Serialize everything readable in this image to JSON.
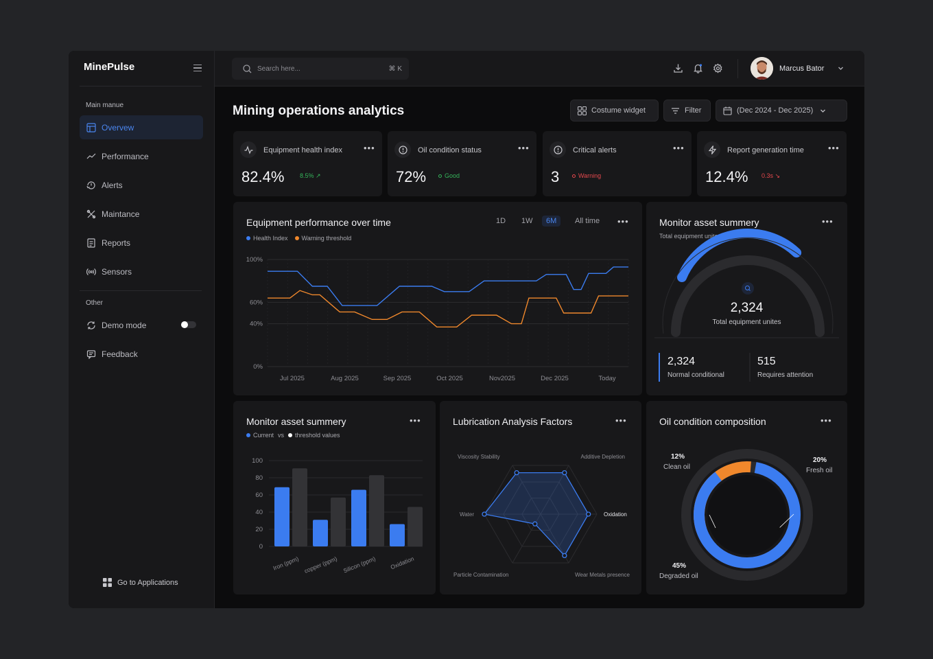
{
  "app": {
    "brand": "MinePulse"
  },
  "sidebar": {
    "section_main": "Main manue",
    "section_other": "Other",
    "items": [
      {
        "label": "Overvew",
        "icon": "layout-icon"
      },
      {
        "label": "Performance",
        "icon": "trend-icon"
      },
      {
        "label": "Alerts",
        "icon": "alert-icon"
      },
      {
        "label": "Maintance",
        "icon": "tools-icon"
      },
      {
        "label": "Reports",
        "icon": "report-icon"
      },
      {
        "label": "Sensors",
        "icon": "sensor-icon"
      }
    ],
    "other_items": [
      {
        "label": "Demo mode",
        "icon": "refresh-icon",
        "toggle": "off"
      },
      {
        "label": "Feedback",
        "icon": "chat-icon"
      }
    ],
    "goto": "Go to Applications"
  },
  "topbar": {
    "search_placeholder": "Search here...",
    "shortcut": "⌘ K",
    "user_name": "Marcus Bator"
  },
  "page": {
    "title": "Mining operations analytics",
    "custom_widget": "Costume widget",
    "filter": "Filter",
    "date_range": "(Dec 2024 - Dec 2025)"
  },
  "kpis": [
    {
      "label": "Equipment health index",
      "value": "82.4%",
      "badge": "8.5% ↗",
      "badge_color": "#35b35a"
    },
    {
      "label": "Oil condition status",
      "value": "72%",
      "badge": "Good",
      "badge_color": "#35b35a"
    },
    {
      "label": "Critical alerts",
      "value": "3",
      "badge": "Warning",
      "badge_color": "#e5484d"
    },
    {
      "label": "Report generation time",
      "value": "12.4%",
      "badge": "0.3s ↘",
      "badge_color": "#e5484d"
    }
  ],
  "performance": {
    "title": "Equipment performance over time",
    "ranges": [
      "1D",
      "1W",
      "6M",
      "All time"
    ],
    "selected_range": "6M",
    "legend": [
      "Health Index",
      "Warning threshold"
    ]
  },
  "asset_summary": {
    "title": "Monitor asset summery",
    "subtitle": "Total equipment unites",
    "gauge_value": "2,324",
    "gauge_label": "Total equipment unites",
    "gauge_fraction": 0.82,
    "stat1_value": "2,324",
    "stat1_label": "Normal conditional",
    "stat2_value": "515",
    "stat2_label": "Requires attention"
  },
  "bar_card": {
    "title": "Monitor asset summery",
    "legend_current": "Current",
    "legend_vs": "vs",
    "legend_threshold": "threshold values"
  },
  "radar_card": {
    "title": "Lubrication Analysis Factors"
  },
  "oil_card": {
    "title": "Oil condition composition",
    "segments": [
      {
        "pct": "12%",
        "label": "Clean oil"
      },
      {
        "pct": "20%",
        "label": "Fresh oil"
      },
      {
        "pct": "45%",
        "label": "Degraded oil"
      }
    ]
  },
  "colors": {
    "accent": "#3b7cf0",
    "orange": "#f0882c",
    "bg": "#0c0c0d",
    "card": "#18181a"
  },
  "chart_data": [
    {
      "type": "line",
      "x": [
        "Jul 2025",
        "Aug 2025",
        "Sep 2025",
        "Oct 2025",
        "Nov2025",
        "Dec 2025",
        "Today"
      ],
      "ylabel": "",
      "yticks": [
        "0%",
        "40%",
        "60%",
        "100%"
      ],
      "ylim": [
        0,
        100
      ],
      "grid": true,
      "series": [
        {
          "name": "Health Index",
          "color": "#3b7cf0",
          "points": [
            [
              0,
              89
            ],
            [
              1.2,
              89
            ],
            [
              1.8,
              75
            ],
            [
              2.4,
              75
            ],
            [
              3.0,
              57
            ],
            [
              4.4,
              57
            ],
            [
              5.3,
              75
            ],
            [
              6.6,
              75
            ],
            [
              7.1,
              70
            ],
            [
              8.1,
              70
            ],
            [
              8.7,
              80
            ],
            [
              10.8,
              80
            ],
            [
              11.2,
              86
            ],
            [
              12.0,
              86
            ],
            [
              12.3,
              72
            ],
            [
              12.6,
              72
            ],
            [
              12.9,
              87
            ],
            [
              13.6,
              87
            ],
            [
              13.9,
              93
            ],
            [
              14.5,
              93
            ]
          ]
        },
        {
          "name": "Warning threshold",
          "color": "#f0882c",
          "points": [
            [
              0,
              64
            ],
            [
              0.9,
              64
            ],
            [
              1.3,
              71
            ],
            [
              1.8,
              67
            ],
            [
              2.1,
              67
            ],
            [
              2.9,
              51
            ],
            [
              3.5,
              51
            ],
            [
              4.2,
              44
            ],
            [
              4.8,
              44
            ],
            [
              5.4,
              51
            ],
            [
              6.1,
              51
            ],
            [
              6.8,
              37
            ],
            [
              7.6,
              37
            ],
            [
              8.2,
              48
            ],
            [
              9.2,
              48
            ],
            [
              9.8,
              40
            ],
            [
              10.2,
              40
            ],
            [
              10.5,
              64
            ],
            [
              11.6,
              64
            ],
            [
              11.9,
              50
            ],
            [
              13.0,
              50
            ],
            [
              13.3,
              66
            ],
            [
              14.5,
              66
            ]
          ]
        }
      ]
    },
    {
      "type": "bar",
      "categories": [
        "Iron (ppm)",
        "copper (ppm)",
        "Silicon (ppm)",
        "Oxidation"
      ],
      "yticks": [
        0,
        20,
        40,
        60,
        80,
        100
      ],
      "ylim": [
        0,
        100
      ],
      "series": [
        {
          "name": "Current",
          "color": "#3b7cf0",
          "values": [
            69,
            31,
            66,
            26
          ]
        },
        {
          "name": "threshold values",
          "color": "#333336",
          "values": [
            91,
            57,
            83,
            46
          ]
        }
      ]
    },
    {
      "type": "radar",
      "axes": [
        "Oxidation",
        "Additive Depletion",
        "Viscosity Stability",
        "Water",
        "Particle Contamination",
        "Wear Metals presence"
      ],
      "values": [
        0.85,
        0.85,
        0.85,
        1.0,
        0.2,
        0.85
      ],
      "color": "#3b7cf0"
    },
    {
      "type": "pie",
      "categories": [
        "Clean oil",
        "Fresh oil",
        "Degraded oil"
      ],
      "values": [
        12,
        20,
        45
      ],
      "colors": [
        "#f0882c",
        "#3b7cf0",
        "#2a2a2d"
      ]
    }
  ]
}
